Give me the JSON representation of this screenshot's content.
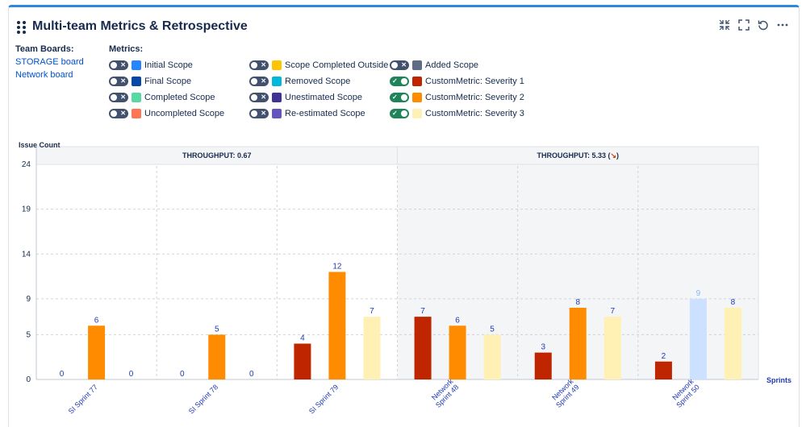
{
  "panel": {
    "title": "Multi-team Metrics & Retrospective"
  },
  "icons": {
    "drag": "drag-handle-icon",
    "collapse": "collapse-icon",
    "fullscreen": "fullscreen-icon",
    "refresh": "refresh-icon",
    "more": "more-icon"
  },
  "teams": {
    "label": "Team Boards:",
    "boards": [
      "STORAGE board",
      "Network board"
    ]
  },
  "metrics": {
    "label": "Metrics:",
    "items": [
      {
        "name": "Initial Scope",
        "color": "#2684ff",
        "on": false
      },
      {
        "name": "Final Scope",
        "color": "#0747a6",
        "on": false
      },
      {
        "name": "Completed Scope",
        "color": "#57d9a3",
        "on": false
      },
      {
        "name": "Uncompleted Scope",
        "color": "#ff7452",
        "on": false
      },
      {
        "name": "Scope Completed Outside",
        "color": "#ffc400",
        "on": false
      },
      {
        "name": "Removed Scope",
        "color": "#00b8d9",
        "on": false
      },
      {
        "name": "Unestimated Scope",
        "color": "#403294",
        "on": false
      },
      {
        "name": "Re-estimated Scope",
        "color": "#6554c0",
        "on": false
      },
      {
        "name": "Added Scope",
        "color": "#5e6c84",
        "on": false
      },
      {
        "name": "CustomMetric: Severity 1",
        "color": "#bf2600",
        "on": true
      },
      {
        "name": "CustomMetric: Severity 2",
        "color": "#ff8b00",
        "on": true
      },
      {
        "name": "CustomMetric: Severity 3",
        "color": "#fff0b3",
        "on": true
      }
    ]
  },
  "chart_data": {
    "type": "bar",
    "ylabel": "Issue Count",
    "xlabel": "Sprints",
    "ylim": [
      0,
      24
    ],
    "yticks": [
      0,
      5,
      9,
      14,
      19,
      24
    ],
    "grid": true,
    "categories": [
      "SI Sprint 77",
      "SI Sprint 78",
      "SI Sprint 79",
      "Network Sprint 48",
      "Network Sprint 49",
      "Network Sprint 50"
    ],
    "category_lines": [
      [
        "SI Sprint 77"
      ],
      [
        "SI Sprint 78"
      ],
      [
        "SI Sprint 79"
      ],
      [
        "Network",
        "Sprint 48"
      ],
      [
        "Network",
        "Sprint 49"
      ],
      [
        "Network",
        "Sprint 50"
      ]
    ],
    "series": [
      {
        "name": "CustomMetric: Severity 1",
        "color": "#bf2600",
        "values": [
          0,
          0,
          4,
          7,
          3,
          2
        ]
      },
      {
        "name": "CustomMetric: Severity 2",
        "color": "#ff8b00",
        "values": [
          6,
          5,
          12,
          6,
          8,
          null
        ]
      },
      {
        "name": "CustomMetric: Severity 3",
        "color": "#fff0b3",
        "values": [
          0,
          0,
          7,
          5,
          7,
          8
        ]
      }
    ],
    "extra_bars": [
      {
        "category": "Network Sprint 50",
        "slot": 1,
        "value": 9,
        "color": "#cce0ff",
        "label_color": "#85b8ff"
      }
    ],
    "groups": [
      {
        "label": "THROUGHPUT: 0.67",
        "trend": "",
        "start": 0,
        "end": 2,
        "shaded": false
      },
      {
        "label": "THROUGHPUT: 5.33 (",
        "trend": "↘",
        "suffix": ")",
        "start": 3,
        "end": 5,
        "shaded": true
      }
    ]
  }
}
